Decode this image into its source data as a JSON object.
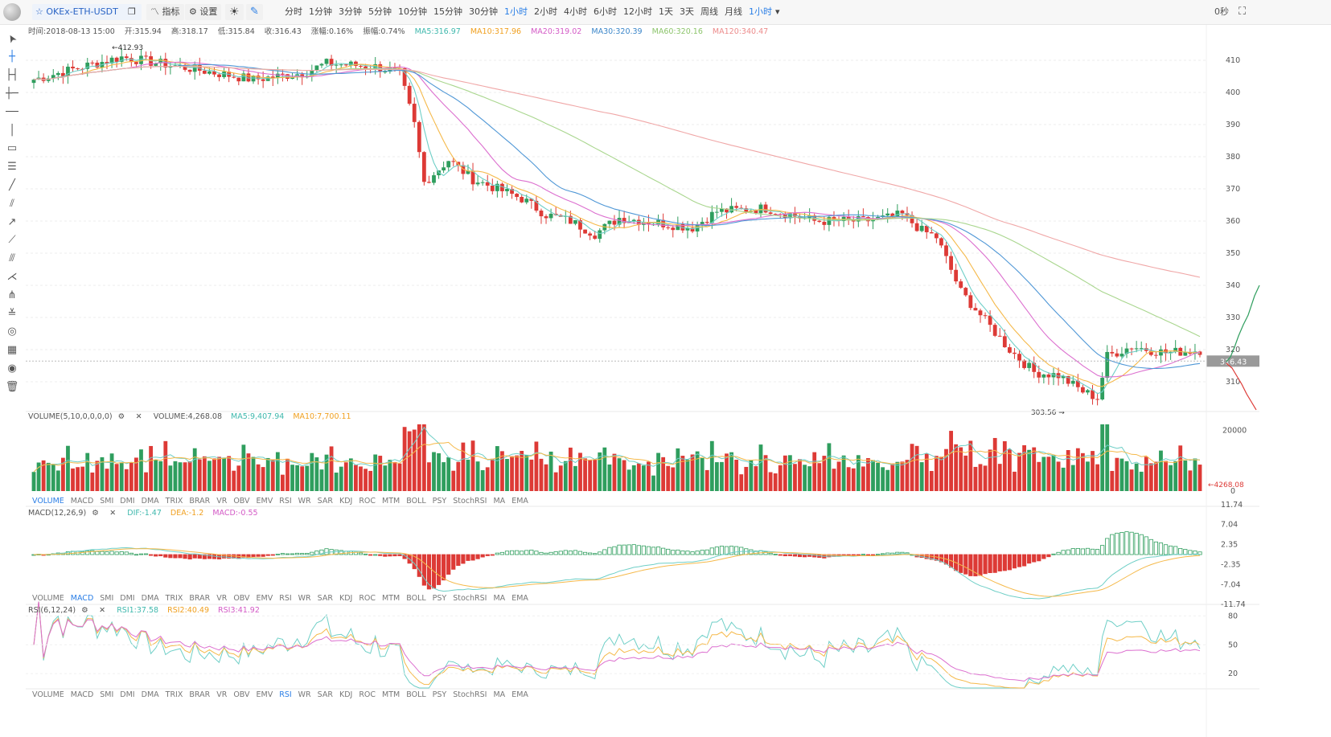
{
  "toolbar": {
    "symbol": "OKEx-ETH-USDT",
    "indicator_label": "指标",
    "settings_label": "设置",
    "periods": [
      "分时",
      "1分钟",
      "3分钟",
      "5分钟",
      "10分钟",
      "15分钟",
      "30分钟",
      "1小时",
      "2小时",
      "4小时",
      "6小时",
      "12小时",
      "1天",
      "3天",
      "周线",
      "月线"
    ],
    "active_period": "1小时",
    "period_select": "1小时",
    "countdown": "0秒"
  },
  "ohlc": {
    "time": "时间:2018-08-13 15:00",
    "open": "开:315.94",
    "high": "高:318.17",
    "low": "低:315.84",
    "close": "收:316.43",
    "change": "涨幅:0.16%",
    "amplitude": "振幅:0.74%",
    "ma5": "MA5:316.97",
    "ma10": "MA10:317.96",
    "ma20": "MA20:319.02",
    "ma30": "MA30:320.39",
    "ma60": "MA60:320.16",
    "ma120": "MA120:340.47"
  },
  "price_axis": {
    "labels": [
      "410",
      "400",
      "390",
      "380",
      "370",
      "360",
      "350",
      "340",
      "330",
      "320",
      "310"
    ],
    "current": "316.43",
    "high_label": "←412.93",
    "low_label": "303.56 →"
  },
  "volume_panel": {
    "title": "VOLUME(5,10,0,0,0,0)",
    "value": "VOLUME:4,268.08",
    "ma5": "MA5:9,407.94",
    "ma10": "MA10:7,700.11",
    "axis": [
      "20000",
      "0"
    ],
    "current": "←4268.08"
  },
  "macd_panel": {
    "title": "MACD(12,26,9)",
    "dif": "DIF:-1.47",
    "dea": "DEA:-1.2",
    "macd": "MACD:-0.55",
    "axis": [
      "11.74",
      "7.04",
      "2.35",
      "-2.35",
      "-7.04",
      "-11.74"
    ]
  },
  "rsi_panel": {
    "title": "RSI(6,12,24)",
    "rsi1": "RSI1:37.58",
    "rsi2": "RSI2:40.49",
    "rsi3": "RSI3:41.92",
    "axis": [
      "80",
      "50",
      "20"
    ]
  },
  "indicators": [
    "VOLUME",
    "MACD",
    "SMI",
    "DMI",
    "DMA",
    "TRIX",
    "BRAR",
    "VR",
    "OBV",
    "EMV",
    "RSI",
    "WR",
    "SAR",
    "KDJ",
    "ROC",
    "MTM",
    "BOLL",
    "PSY",
    "StochRSI",
    "MA",
    "EMA"
  ],
  "indicator_bars": [
    {
      "active": "VOLUME"
    },
    {
      "active": "MACD"
    },
    {
      "active": "RSI"
    }
  ],
  "colors": {
    "up": "#2f9e5e",
    "down": "#dd3a36",
    "ma5": "#6fcfc7",
    "ma10": "#f5b94a",
    "ma20": "#dc6fcf",
    "ma30": "#4f97d6",
    "ma60": "#a9d68e",
    "ma120": "#f0a7a7",
    "active": "#2a7ee6"
  },
  "tools": [
    "cursor-icon",
    "crosshair-icon",
    "segment-icon",
    "horizontal-ray-icon",
    "horizontal-line-icon",
    "vertical-line-icon",
    "price-line-icon",
    "parallel-lines-icon",
    "trend-line-icon",
    "channel-icon",
    "arrow-line-icon",
    "ray-icon",
    "fib-retracement-icon",
    "fib-fan-icon",
    "pitchfork-icon",
    "gann-fan-icon",
    "spiral-icon",
    "measure-icon",
    "eye-icon",
    "trash-icon"
  ]
}
